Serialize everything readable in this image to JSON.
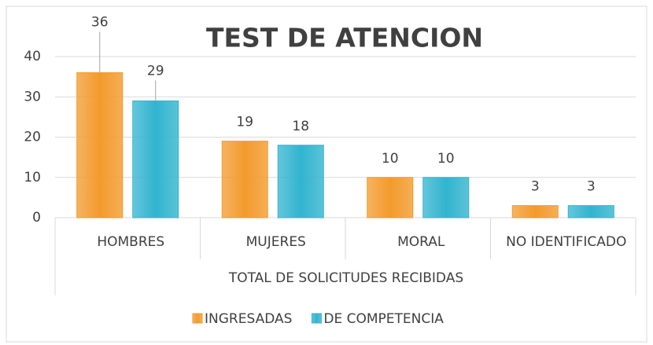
{
  "chart_data": {
    "type": "bar",
    "title": "TEST DE ATENCION",
    "x_label": "TOTAL DE SOLICITUDES RECIBIDAS",
    "categories": [
      "HOMBRES",
      "MUJERES",
      "MORAL",
      "NO IDENTIFICADO"
    ],
    "series": [
      {
        "name": "INGRESADAS",
        "color": "#f39a2c",
        "values": [
          36,
          19,
          10,
          3
        ]
      },
      {
        "name": "DE COMPETENCIA",
        "color": "#31b4cf",
        "values": [
          29,
          18,
          10,
          3
        ]
      }
    ],
    "ylim": [
      0,
      40
    ],
    "yticks": [
      0,
      10,
      20,
      30,
      40
    ],
    "grid": true,
    "legend": "bottom"
  }
}
